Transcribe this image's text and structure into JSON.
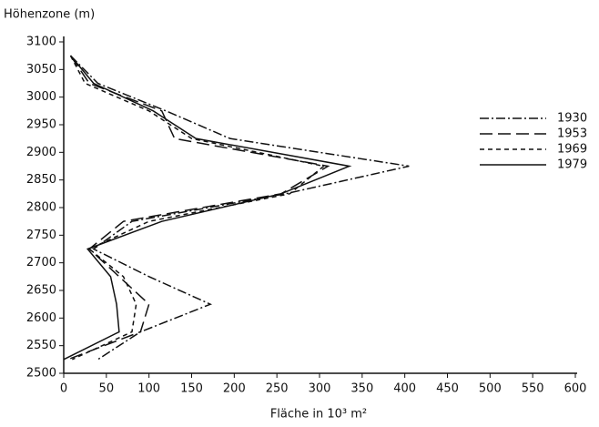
{
  "chart_data": {
    "type": "line",
    "y_axis_title": "Höhenzone (m)",
    "x_axis_title": "Fläche in 10³ m²",
    "y": [
      3075,
      3025,
      2975,
      2925,
      2875,
      2825,
      2775,
      2725,
      2675,
      2625,
      2575,
      2525
    ],
    "series": [
      {
        "name": "1930",
        "color": "#111111",
        "dash": "10,3,2,3",
        "values": [
          8,
          40,
          120,
          195,
          405,
          260,
          80,
          35,
          100,
          172,
          90,
          40
        ]
      },
      {
        "name": "1953",
        "color": "#111111",
        "dash": "14,6",
        "values": [
          8,
          30,
          115,
          130,
          310,
          255,
          70,
          30,
          65,
          100,
          90,
          5
        ]
      },
      {
        "name": "1969",
        "color": "#111111",
        "dash": "5,4",
        "values": [
          8,
          25,
          100,
          150,
          305,
          265,
          100,
          30,
          70,
          85,
          80,
          10
        ]
      },
      {
        "name": "1979",
        "color": "#111111",
        "dash": "none",
        "values": [
          8,
          35,
          105,
          155,
          335,
          255,
          115,
          28,
          55,
          62,
          65,
          0
        ]
      }
    ],
    "xlim": [
      0,
      600
    ],
    "xticks": [
      0,
      50,
      100,
      150,
      200,
      250,
      300,
      350,
      400,
      450,
      500,
      550,
      600
    ],
    "ylim": [
      2500,
      3100
    ],
    "yticks": [
      2500,
      2550,
      2600,
      2650,
      2700,
      2750,
      2800,
      2850,
      2900,
      2950,
      3000,
      3050,
      3100
    ],
    "grid": false,
    "legend": "right"
  }
}
